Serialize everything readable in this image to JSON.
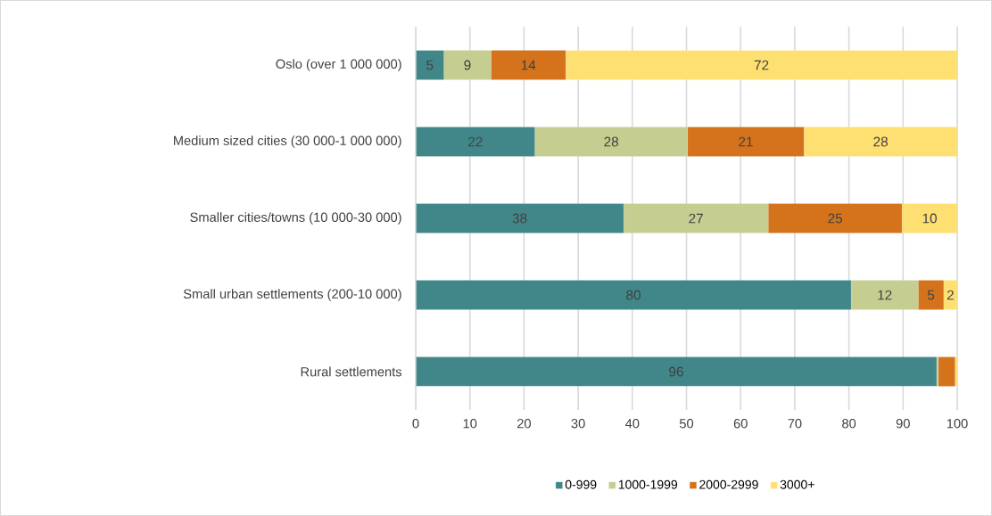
{
  "chart_data": {
    "type": "bar",
    "orientation": "horizontal",
    "stacked": true,
    "categories": [
      "Oslo (over 1 000 000)",
      "Medium sized cities (30 000-1 000 000)",
      "Smaller cities/towns (10 000-30 000)",
      "Small urban settlements (200-10 000)",
      "Rural settlements"
    ],
    "series": [
      {
        "name": "0-999",
        "color": "#41878a",
        "values": [
          5.2,
          22,
          38.4,
          80.4,
          96.2
        ],
        "value_labels": [
          "5",
          "22",
          "38",
          "80",
          "96"
        ]
      },
      {
        "name": "1000-1999",
        "color": "#c6cd91",
        "values": [
          8.7,
          28.2,
          26.7,
          12.4,
          0.3
        ],
        "value_labels": [
          "9",
          "28",
          "27",
          "12",
          null
        ]
      },
      {
        "name": "2000-2999",
        "color": "#d4731b",
        "values": [
          13.8,
          21.5,
          24.7,
          4.7,
          3.1
        ],
        "value_labels": [
          "14",
          "21",
          "25",
          "5",
          null
        ]
      },
      {
        "name": "3000+",
        "color": "#fedf72",
        "values": [
          72.3,
          28.3,
          10.2,
          2.5,
          0.4
        ],
        "value_labels": [
          "72",
          "28",
          "10",
          "2",
          null
        ]
      }
    ],
    "xlim": [
      0,
      100
    ],
    "xticks": [
      0,
      10,
      20,
      30,
      40,
      50,
      60,
      70,
      80,
      90,
      100
    ],
    "grid": "x",
    "legend": "bottom"
  }
}
